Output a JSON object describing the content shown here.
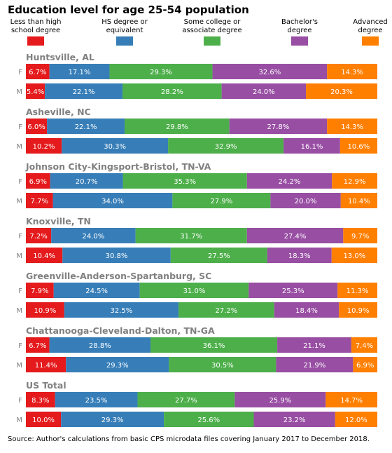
{
  "chart_data": {
    "type": "bar",
    "orientation": "horizontal-stacked-percent",
    "title": "Education level for age 25-54 population",
    "legend": {
      "placement": "top",
      "entries": [
        {
          "label": "Less than high school degree",
          "lines": [
            "Less than high",
            "school degree"
          ],
          "color": "#e41a1c"
        },
        {
          "label": "HS degree or equivalent",
          "lines": [
            "HS degree or",
            "equivalent"
          ],
          "color": "#377eb8"
        },
        {
          "label": "Some college or associate degree",
          "lines": [
            "Some college or",
            "associate degree"
          ],
          "color": "#4daf4a"
        },
        {
          "label": "Bachelor's degree",
          "lines": [
            "Bachelor's",
            "degree"
          ],
          "color": "#984ea3"
        },
        {
          "label": "Advanced degree",
          "lines": [
            "Advanced",
            "degree"
          ],
          "color": "#ff7f00"
        }
      ]
    },
    "groups": [
      {
        "name": "Huntsville, AL",
        "rows": [
          {
            "label": "F",
            "values": [
              6.7,
              17.1,
              29.3,
              32.6,
              14.3
            ]
          },
          {
            "label": "M",
            "values": [
              5.4,
              22.1,
              28.2,
              24.0,
              20.3
            ]
          }
        ]
      },
      {
        "name": "Asheville, NC",
        "rows": [
          {
            "label": "F",
            "values": [
              6.0,
              22.1,
              29.8,
              27.8,
              14.3
            ]
          },
          {
            "label": "M",
            "values": [
              10.2,
              30.3,
              32.9,
              16.1,
              10.6
            ]
          }
        ]
      },
      {
        "name": "Johnson City-Kingsport-Bristol, TN-VA",
        "rows": [
          {
            "label": "F",
            "values": [
              6.9,
              20.7,
              35.3,
              24.2,
              12.9
            ]
          },
          {
            "label": "M",
            "values": [
              7.7,
              34.0,
              27.9,
              20.0,
              10.4
            ]
          }
        ]
      },
      {
        "name": "Knoxville, TN",
        "rows": [
          {
            "label": "F",
            "values": [
              7.2,
              24.0,
              31.7,
              27.4,
              9.7
            ]
          },
          {
            "label": "M",
            "values": [
              10.4,
              30.8,
              27.5,
              18.3,
              13.0
            ]
          }
        ]
      },
      {
        "name": "Greenville-Anderson-Spartanburg, SC",
        "rows": [
          {
            "label": "F",
            "values": [
              7.9,
              24.5,
              31.0,
              25.3,
              11.3
            ]
          },
          {
            "label": "M",
            "values": [
              10.9,
              32.5,
              27.2,
              18.4,
              10.9
            ]
          }
        ]
      },
      {
        "name": "Chattanooga-Cleveland-Dalton, TN-GA",
        "rows": [
          {
            "label": "F",
            "values": [
              6.7,
              28.8,
              36.1,
              21.1,
              7.4
            ]
          },
          {
            "label": "M",
            "values": [
              11.4,
              29.3,
              30.5,
              21.9,
              6.9
            ]
          }
        ]
      },
      {
        "name": "US Total",
        "rows": [
          {
            "label": "F",
            "values": [
              8.3,
              23.5,
              27.7,
              25.9,
              14.7
            ]
          },
          {
            "label": "M",
            "values": [
              10.0,
              29.3,
              25.6,
              23.2,
              12.0
            ]
          }
        ]
      }
    ],
    "value_format": "{v}%",
    "xlim": [
      0,
      100
    ],
    "grid": false
  },
  "source_note": "Source: Author's calculations from basic CPS microdata files covering January 2017 to December 2018."
}
